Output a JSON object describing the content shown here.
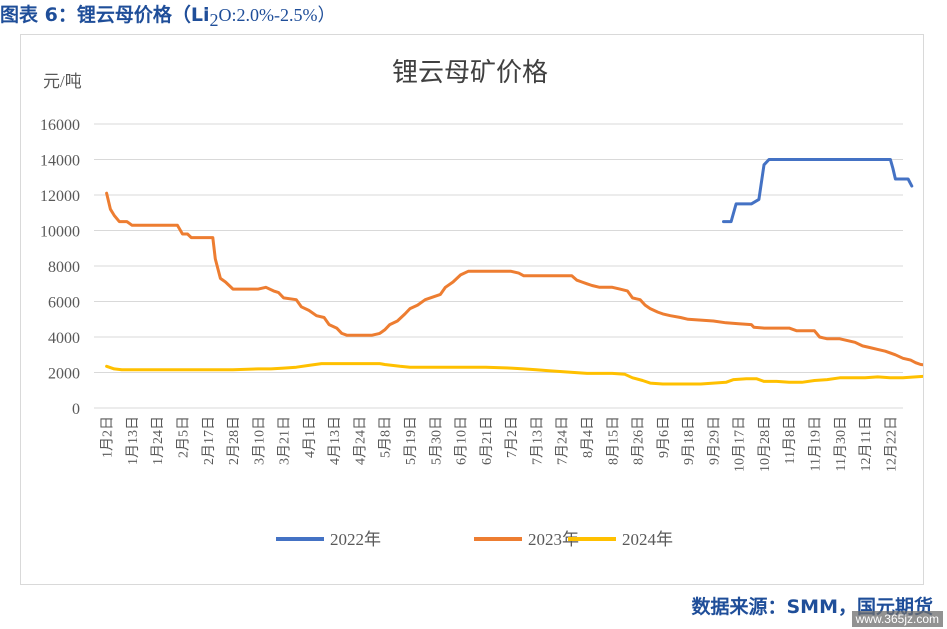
{
  "figure_caption": {
    "prefix": "图表 6：锂云母价格（Li",
    "sub": "2",
    "suffix": "O:2.0%-2.5%）"
  },
  "source": "数据来源：SMM，国元期货",
  "watermark": "www.365jz.com",
  "colors": {
    "caption": "#1f4e99",
    "series_2022": "#4472c4",
    "series_2023": "#ed7d31",
    "series_2024": "#ffc000",
    "grid": "#d9d9d9"
  },
  "chart_data": {
    "type": "line",
    "title": "锂云母矿价格",
    "ylabel": "元/吨",
    "xlabel": "",
    "ylim": [
      0,
      16000
    ],
    "yticks": [
      0,
      2000,
      4000,
      6000,
      8000,
      10000,
      12000,
      14000,
      16000
    ],
    "x_tick_labels": [
      "1月2日",
      "1月13日",
      "1月24日",
      "2月5日",
      "2月17日",
      "2月28日",
      "3月10日",
      "3月21日",
      "4月1日",
      "4月13日",
      "4月24日",
      "5月8日",
      "5月19日",
      "5月30日",
      "6月10日",
      "6月21日",
      "7月2日",
      "7月13日",
      "7月24日",
      "8月4日",
      "8月15日",
      "8月26日",
      "9月6日",
      "9月18日",
      "9月29日",
      "10月17日",
      "10月28日",
      "11月8日",
      "11月19日",
      "11月30日",
      "12月11日",
      "12月22日"
    ],
    "grid": true,
    "legend_position": "bottom",
    "series": [
      {
        "name": "2022年",
        "color": "#4472c4",
        "points": [
          [
            24.4,
            10500
          ],
          [
            24.7,
            10500
          ],
          [
            24.9,
            11500
          ],
          [
            25.3,
            11500
          ],
          [
            25.5,
            11500
          ],
          [
            25.8,
            11750
          ],
          [
            26.0,
            13700
          ],
          [
            26.2,
            14000
          ],
          [
            27.0,
            14000
          ],
          [
            29.0,
            14000
          ],
          [
            31.0,
            14000
          ],
          [
            31.1,
            13500
          ],
          [
            31.2,
            12900
          ],
          [
            31.5,
            12900
          ],
          [
            31.7,
            12900
          ],
          [
            31.85,
            12500
          ]
        ]
      },
      {
        "name": "2023年",
        "color": "#ed7d31",
        "points": [
          [
            0.0,
            12100
          ],
          [
            0.15,
            11200
          ],
          [
            0.3,
            10850
          ],
          [
            0.5,
            10500
          ],
          [
            0.8,
            10500
          ],
          [
            1.0,
            10300
          ],
          [
            1.5,
            10300
          ],
          [
            2.0,
            10300
          ],
          [
            2.5,
            10300
          ],
          [
            2.8,
            10300
          ],
          [
            3.0,
            9800
          ],
          [
            3.2,
            9800
          ],
          [
            3.35,
            9600
          ],
          [
            3.6,
            9600
          ],
          [
            4.0,
            9600
          ],
          [
            4.2,
            9600
          ],
          [
            4.3,
            8400
          ],
          [
            4.5,
            7300
          ],
          [
            4.7,
            7100
          ],
          [
            5.0,
            6700
          ],
          [
            5.5,
            6700
          ],
          [
            6.0,
            6700
          ],
          [
            6.3,
            6800
          ],
          [
            6.6,
            6600
          ],
          [
            6.8,
            6500
          ],
          [
            7.0,
            6200
          ],
          [
            7.5,
            6100
          ],
          [
            7.7,
            5700
          ],
          [
            8.0,
            5500
          ],
          [
            8.3,
            5200
          ],
          [
            8.6,
            5100
          ],
          [
            8.8,
            4700
          ],
          [
            9.1,
            4500
          ],
          [
            9.3,
            4200
          ],
          [
            9.5,
            4100
          ],
          [
            10.0,
            4100
          ],
          [
            10.5,
            4100
          ],
          [
            10.8,
            4200
          ],
          [
            11.0,
            4400
          ],
          [
            11.2,
            4700
          ],
          [
            11.5,
            4900
          ],
          [
            11.8,
            5300
          ],
          [
            12.0,
            5600
          ],
          [
            12.3,
            5800
          ],
          [
            12.6,
            6100
          ],
          [
            13.0,
            6300
          ],
          [
            13.2,
            6400
          ],
          [
            13.4,
            6800
          ],
          [
            13.7,
            7100
          ],
          [
            14.0,
            7500
          ],
          [
            14.3,
            7700
          ],
          [
            14.6,
            7700
          ],
          [
            15.0,
            7700
          ],
          [
            15.5,
            7700
          ],
          [
            16.0,
            7700
          ],
          [
            16.3,
            7600
          ],
          [
            16.5,
            7450
          ],
          [
            17.0,
            7450
          ],
          [
            17.5,
            7450
          ],
          [
            18.0,
            7450
          ],
          [
            18.4,
            7450
          ],
          [
            18.6,
            7200
          ],
          [
            18.8,
            7100
          ],
          [
            19.0,
            7000
          ],
          [
            19.2,
            6900
          ],
          [
            19.5,
            6800
          ],
          [
            20.0,
            6800
          ],
          [
            20.3,
            6700
          ],
          [
            20.6,
            6600
          ],
          [
            20.8,
            6200
          ],
          [
            21.1,
            6100
          ],
          [
            21.3,
            5800
          ],
          [
            21.5,
            5600
          ],
          [
            21.8,
            5400
          ],
          [
            22.0,
            5300
          ],
          [
            22.3,
            5200
          ],
          [
            22.7,
            5100
          ],
          [
            23.0,
            5000
          ],
          [
            23.5,
            4950
          ],
          [
            24.0,
            4900
          ],
          [
            24.5,
            4800
          ],
          [
            25.0,
            4750
          ],
          [
            25.5,
            4700
          ],
          [
            25.6,
            4550
          ],
          [
            26.0,
            4500
          ],
          [
            26.5,
            4500
          ],
          [
            27.0,
            4500
          ],
          [
            27.3,
            4350
          ],
          [
            27.6,
            4350
          ],
          [
            28.0,
            4350
          ],
          [
            28.2,
            4000
          ],
          [
            28.5,
            3900
          ],
          [
            29.0,
            3900
          ],
          [
            29.3,
            3800
          ],
          [
            29.6,
            3700
          ],
          [
            29.9,
            3500
          ],
          [
            30.2,
            3400
          ],
          [
            30.5,
            3300
          ],
          [
            30.8,
            3200
          ],
          [
            31.2,
            3000
          ],
          [
            31.5,
            2800
          ],
          [
            31.8,
            2700
          ],
          [
            32.0,
            2550
          ],
          [
            32.2,
            2450
          ],
          [
            32.5,
            2400
          ],
          [
            32.8,
            2300
          ],
          [
            33.0,
            2300
          ]
        ]
      },
      {
        "name": "2024年",
        "color": "#ffc000",
        "points": [
          [
            0.0,
            2350
          ],
          [
            0.3,
            2200
          ],
          [
            0.6,
            2150
          ],
          [
            1.0,
            2150
          ],
          [
            2.0,
            2150
          ],
          [
            3.0,
            2150
          ],
          [
            4.0,
            2150
          ],
          [
            5.0,
            2150
          ],
          [
            6.0,
            2200
          ],
          [
            6.5,
            2200
          ],
          [
            7.0,
            2250
          ],
          [
            7.5,
            2300
          ],
          [
            8.0,
            2400
          ],
          [
            8.5,
            2500
          ],
          [
            9.0,
            2500
          ],
          [
            9.5,
            2500
          ],
          [
            10.0,
            2500
          ],
          [
            10.5,
            2500
          ],
          [
            10.8,
            2500
          ],
          [
            11.0,
            2450
          ],
          [
            11.3,
            2400
          ],
          [
            11.6,
            2350
          ],
          [
            12.0,
            2300
          ],
          [
            13.0,
            2300
          ],
          [
            14.0,
            2300
          ],
          [
            15.0,
            2300
          ],
          [
            16.0,
            2250
          ],
          [
            16.5,
            2200
          ],
          [
            17.0,
            2150
          ],
          [
            17.5,
            2100
          ],
          [
            18.0,
            2050
          ],
          [
            18.5,
            2000
          ],
          [
            19.0,
            1950
          ],
          [
            20.0,
            1950
          ],
          [
            20.5,
            1900
          ],
          [
            20.8,
            1700
          ],
          [
            21.2,
            1550
          ],
          [
            21.5,
            1400
          ],
          [
            22.0,
            1350
          ],
          [
            22.5,
            1350
          ],
          [
            23.0,
            1350
          ],
          [
            23.5,
            1350
          ],
          [
            24.0,
            1400
          ],
          [
            24.5,
            1450
          ],
          [
            24.8,
            1600
          ],
          [
            25.3,
            1650
          ],
          [
            25.7,
            1650
          ],
          [
            26.0,
            1500
          ],
          [
            26.5,
            1500
          ],
          [
            27.0,
            1450
          ],
          [
            27.5,
            1450
          ],
          [
            28.0,
            1550
          ],
          [
            28.5,
            1600
          ],
          [
            29.0,
            1700
          ],
          [
            29.5,
            1700
          ],
          [
            30.0,
            1700
          ],
          [
            30.5,
            1750
          ],
          [
            31.0,
            1700
          ],
          [
            31.5,
            1700
          ],
          [
            32.0,
            1750
          ],
          [
            32.5,
            1800
          ],
          [
            33.0,
            1800
          ]
        ]
      }
    ]
  }
}
